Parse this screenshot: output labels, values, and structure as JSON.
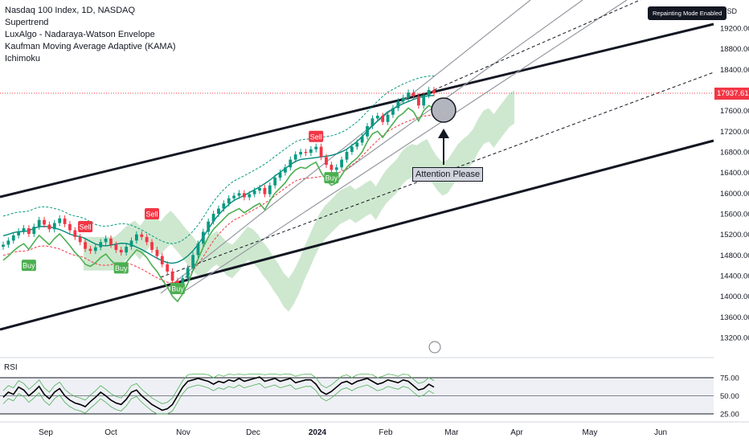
{
  "header": {
    "title": "Nasdaq 100 Index, 1D, NASDAQ",
    "indicators": [
      "Supertrend",
      "LuxAlgo - Nadaraya-Watson Envelope",
      "Kaufman Moving Average Adaptive (KAMA)",
      "Ichimoku"
    ]
  },
  "badge": "Repainting Mode Enabled",
  "currency": "USD",
  "last_price": "17937.61",
  "annotation": "Attention Please",
  "colors": {
    "up": "#089981",
    "down": "#f23645",
    "buy": "#4caf50",
    "sell": "#f23645",
    "cloud": "#a5d6a7"
  },
  "chart_data": [
    {
      "type": "candlestick",
      "title": "Nasdaq 100 Index, 1D, NASDAQ",
      "y_ticks": [
        "19200.00",
        "18800.00",
        "18400.00",
        "18000.00",
        "17600.00",
        "17200.00",
        "16800.00",
        "16400.00",
        "16000.00",
        "15600.00",
        "15200.00",
        "14800.00",
        "14400.00",
        "14000.00",
        "13600.00",
        "13200.00"
      ],
      "ylim": [
        13000,
        19500
      ],
      "x_ticks": [
        "Sep",
        "Oct",
        "Nov",
        "Dec",
        "2024",
        "Feb",
        "Mar",
        "Apr",
        "May",
        "Jun"
      ],
      "closes": [
        15000,
        15080,
        15180,
        15260,
        15320,
        15210,
        15350,
        15480,
        15390,
        15300,
        15420,
        15510,
        15400,
        15280,
        15150,
        15050,
        14920,
        14880,
        14950,
        15050,
        15120,
        15000,
        14900,
        14850,
        14960,
        15080,
        15200,
        15150,
        15050,
        14900,
        14780,
        14620,
        14480,
        14300,
        14200,
        14350,
        14550,
        14800,
        15020,
        15250,
        15450,
        15600,
        15700,
        15800,
        15900,
        15950,
        16000,
        15920,
        15980,
        16050,
        16100,
        15980,
        16150,
        16300,
        16400,
        16500,
        16650,
        16750,
        16800,
        16780,
        16850,
        16900,
        16700,
        16550,
        16450,
        16500,
        16650,
        16800,
        16900,
        16980,
        17100,
        17300,
        17450,
        17500,
        17380,
        17520,
        17650,
        17780,
        17850,
        17950,
        17880,
        17700,
        17900,
        18000,
        17937.61
      ],
      "signals": [
        {
          "label": "Sell",
          "type": "sell",
          "index": 16,
          "price": 15350
        },
        {
          "label": "Buy",
          "type": "buy",
          "index": 5,
          "price": 14600
        },
        {
          "label": "Buy",
          "type": "buy",
          "index": 23,
          "price": 14550
        },
        {
          "label": "Sell",
          "type": "sell",
          "index": 29,
          "price": 15600
        },
        {
          "label": "Buy",
          "type": "buy",
          "index": 34,
          "price": 14150
        },
        {
          "label": "Sell",
          "type": "sell",
          "index": 61,
          "price": 17100
        },
        {
          "label": "Buy",
          "type": "buy",
          "index": 64,
          "price": 16300
        }
      ]
    },
    {
      "type": "line",
      "title": "RSI",
      "y_ticks": [
        "75.00",
        "50.00",
        "25.00"
      ],
      "ylim": [
        25,
        80
      ],
      "values": [
        48,
        55,
        52,
        62,
        58,
        50,
        56,
        63,
        52,
        46,
        55,
        60,
        50,
        44,
        40,
        38,
        35,
        42,
        48,
        55,
        50,
        44,
        40,
        38,
        45,
        55,
        58,
        50,
        44,
        38,
        34,
        30,
        32,
        38,
        50,
        62,
        70,
        72,
        74,
        72,
        70,
        66,
        70,
        68,
        72,
        70,
        74,
        70,
        72,
        74,
        76,
        70,
        72,
        74,
        70,
        72,
        74,
        68,
        70,
        72,
        72,
        66,
        56,
        52,
        56,
        62,
        68,
        70,
        66,
        70,
        72,
        74,
        70,
        66,
        68,
        72,
        70,
        68,
        72,
        70,
        64,
        58,
        60,
        66,
        62
      ]
    }
  ]
}
